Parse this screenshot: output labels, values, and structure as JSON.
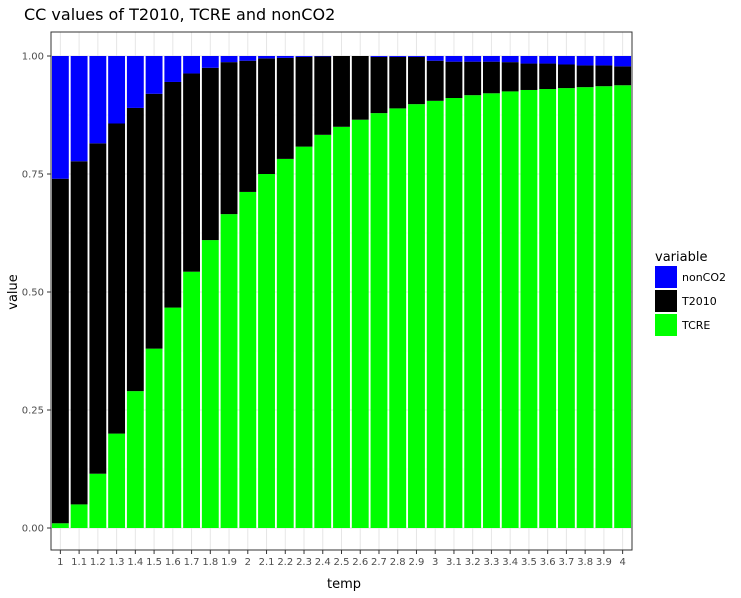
{
  "chart_data": {
    "type": "bar",
    "stacked": true,
    "title": "CC values of T2010, TCRE and nonCO2",
    "xlabel": "temp",
    "ylabel": "value",
    "ylim": [
      0,
      1
    ],
    "yticks": [
      "0.00",
      "0.25",
      "0.50",
      "0.75",
      "1.00"
    ],
    "grid": true,
    "legend_placement": "right",
    "legend_title": "variable",
    "categories": [
      "1",
      "1.1",
      "1.2",
      "1.3",
      "1.4",
      "1.5",
      "1.6",
      "1.7",
      "1.8",
      "1.9",
      "2",
      "2.1",
      "2.2",
      "2.3",
      "2.4",
      "2.5",
      "2.6",
      "2.7",
      "2.8",
      "2.9",
      "3",
      "3.1",
      "3.2",
      "3.3",
      "3.4",
      "3.5",
      "3.6",
      "3.7",
      "3.8",
      "3.9",
      "4"
    ],
    "series": [
      {
        "name": "TCRE",
        "color": "#00ff00",
        "values": [
          0.01,
          0.05,
          0.115,
          0.2,
          0.29,
          0.38,
          0.467,
          0.543,
          0.61,
          0.665,
          0.712,
          0.75,
          0.782,
          0.808,
          0.833,
          0.85,
          0.865,
          0.879,
          0.889,
          0.898,
          0.905,
          0.911,
          0.917,
          0.921,
          0.925,
          0.928,
          0.93,
          0.932,
          0.934,
          0.936,
          0.938
        ]
      },
      {
        "name": "T2010",
        "color": "#000000",
        "values": [
          0.73,
          0.727,
          0.7,
          0.657,
          0.6,
          0.54,
          0.478,
          0.42,
          0.365,
          0.322,
          0.278,
          0.245,
          0.214,
          0.19,
          0.166,
          0.15,
          0.135,
          0.119,
          0.109,
          0.1,
          0.085,
          0.077,
          0.071,
          0.067,
          0.062,
          0.056,
          0.054,
          0.05,
          0.046,
          0.044,
          0.04
        ]
      },
      {
        "name": "nonCO2",
        "color": "#0000ff",
        "values": [
          0.26,
          0.223,
          0.185,
          0.143,
          0.11,
          0.08,
          0.055,
          0.037,
          0.025,
          0.013,
          0.01,
          0.005,
          0.004,
          0.002,
          0.001,
          0.0,
          0.0,
          0.002,
          0.002,
          0.002,
          0.01,
          0.012,
          0.012,
          0.012,
          0.013,
          0.016,
          0.016,
          0.018,
          0.02,
          0.02,
          0.022
        ]
      }
    ],
    "legend_order": [
      "nonCO2",
      "T2010",
      "TCRE"
    ]
  }
}
